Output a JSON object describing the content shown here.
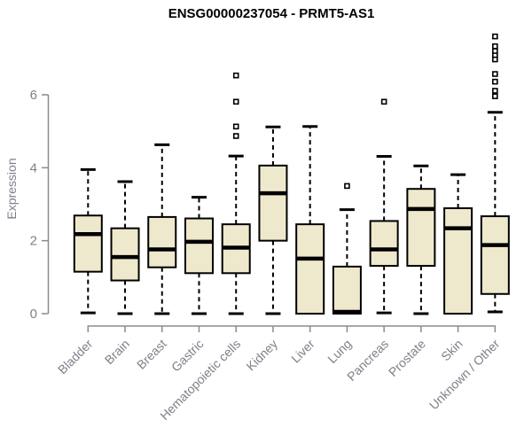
{
  "chart_data": {
    "type": "boxplot",
    "title": "ENSG00000237054 - PRMT5-AS1",
    "ylabel": "Expression",
    "xlabel": "",
    "yticks": [
      0,
      2,
      4,
      6
    ],
    "ylim": [
      0,
      7.8
    ],
    "grid": false,
    "legend": null,
    "categories": [
      "Bladder",
      "Brain",
      "Breast",
      "Gastric",
      "Hematopoietic cells",
      "Kidney",
      "Liver",
      "Lung",
      "Pancreas",
      "Prostate",
      "Skin",
      "Unknown / Other"
    ],
    "boxes": [
      {
        "category": "Bladder",
        "low": 0.02,
        "q1": 1.15,
        "median": 2.18,
        "q3": 2.69,
        "high": 3.95,
        "outliers": []
      },
      {
        "category": "Brain",
        "low": 0.0,
        "q1": 0.91,
        "median": 1.55,
        "q3": 2.34,
        "high": 3.62,
        "outliers": []
      },
      {
        "category": "Breast",
        "low": 0.0,
        "q1": 1.27,
        "median": 1.76,
        "q3": 2.65,
        "high": 4.63,
        "outliers": []
      },
      {
        "category": "Gastric",
        "low": 0.0,
        "q1": 1.11,
        "median": 1.97,
        "q3": 2.61,
        "high": 3.19,
        "outliers": []
      },
      {
        "category": "Hematopoietic cells",
        "low": 0.0,
        "q1": 1.11,
        "median": 1.81,
        "q3": 2.45,
        "high": 4.32,
        "outliers": [
          4.87,
          5.13,
          5.81,
          6.53
        ]
      },
      {
        "category": "Kidney",
        "low": 0.0,
        "q1": 2.0,
        "median": 3.3,
        "q3": 4.06,
        "high": 5.12,
        "outliers": []
      },
      {
        "category": "Liver",
        "low": 0.0,
        "q1": 0.0,
        "median": 1.51,
        "q3": 2.45,
        "high": 5.13,
        "outliers": []
      },
      {
        "category": "Lung",
        "low": 0.0,
        "q1": 0.0,
        "median": 0.05,
        "q3": 1.29,
        "high": 2.85,
        "outliers": [
          3.5
        ]
      },
      {
        "category": "Pancreas",
        "low": 0.02,
        "q1": 1.31,
        "median": 1.76,
        "q3": 2.54,
        "high": 4.31,
        "outliers": [
          5.81
        ]
      },
      {
        "category": "Prostate",
        "low": 0.0,
        "q1": 1.31,
        "median": 2.87,
        "q3": 3.42,
        "high": 4.05,
        "outliers": []
      },
      {
        "category": "Skin",
        "low": 0.0,
        "q1": 0.0,
        "median": 2.34,
        "q3": 2.89,
        "high": 3.81,
        "outliers": []
      },
      {
        "category": "Unknown / Other",
        "low": 0.05,
        "q1": 0.54,
        "median": 1.88,
        "q3": 2.67,
        "high": 5.52,
        "outliers": [
          5.96,
          6.11,
          6.36,
          6.57,
          6.97,
          7.09,
          7.2,
          7.33,
          7.6
        ]
      }
    ],
    "style": {
      "box_fill": "#EEE8CD",
      "box_border": "#000000",
      "median_color": "#000000",
      "whisker_color": "#000000",
      "axis_color": "#8B8B8B",
      "tick_label_color": "#7E808A",
      "title_color": "#000000",
      "background": "#FFFFFF"
    }
  }
}
